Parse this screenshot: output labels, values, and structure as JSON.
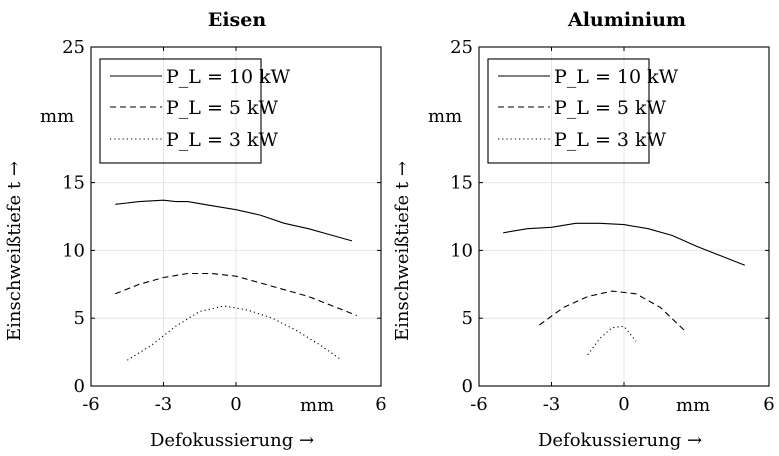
{
  "chart_data": [
    {
      "type": "line",
      "title": "Eisen",
      "xlabel": "Defokussierung →",
      "ylabel": "Einschweißtiefe t →",
      "x_unit": "mm",
      "y_unit": "mm",
      "xlim": [
        -6,
        6
      ],
      "ylim": [
        0,
        25
      ],
      "xticks": [
        "-6",
        "-3",
        "0",
        "6"
      ],
      "yticks": [
        "0",
        "5",
        "10",
        "15",
        "25"
      ],
      "grid": false,
      "legend_position": "top-left",
      "series": [
        {
          "name": "P_L = 10 kW",
          "style": "solid",
          "x": [
            -5.0,
            -4.0,
            -3.0,
            -2.5,
            -2.0,
            -1.0,
            0.0,
            1.0,
            2.0,
            3.0,
            4.0,
            4.8
          ],
          "y": [
            13.4,
            13.6,
            13.7,
            13.6,
            13.6,
            13.3,
            13.0,
            12.6,
            12.0,
            11.6,
            11.1,
            10.7
          ]
        },
        {
          "name": "P_L = 5 kW",
          "style": "dashed",
          "x": [
            -5.0,
            -4.0,
            -3.0,
            -2.0,
            -1.0,
            0.0,
            1.0,
            2.0,
            3.0,
            4.0,
            5.0
          ],
          "y": [
            6.8,
            7.5,
            8.0,
            8.3,
            8.3,
            8.1,
            7.6,
            7.1,
            6.6,
            5.9,
            5.2
          ]
        },
        {
          "name": "P_L = 3 kW",
          "style": "dotted",
          "x": [
            -4.5,
            -3.5,
            -2.5,
            -1.5,
            -0.5,
            0.5,
            1.5,
            2.5,
            3.5,
            4.3
          ],
          "y": [
            1.9,
            3.0,
            4.4,
            5.5,
            5.9,
            5.6,
            5.0,
            4.1,
            3.0,
            2.0
          ]
        }
      ]
    },
    {
      "type": "line",
      "title": "Aluminium",
      "xlabel": "Defokussierung →",
      "ylabel": "Einschweißtiefe t →",
      "x_unit": "mm",
      "y_unit": "mm",
      "xlim": [
        -6,
        6
      ],
      "ylim": [
        0,
        25
      ],
      "xticks": [
        "-6",
        "-3",
        "0",
        "6"
      ],
      "yticks": [
        "0",
        "5",
        "10",
        "15",
        "25"
      ],
      "grid": false,
      "legend_position": "top-left",
      "series": [
        {
          "name": "P_L = 10 kW",
          "style": "solid",
          "x": [
            -5.0,
            -4.0,
            -3.0,
            -2.0,
            -1.0,
            0.0,
            1.0,
            2.0,
            3.0,
            4.0,
            5.0
          ],
          "y": [
            11.3,
            11.6,
            11.7,
            12.0,
            12.0,
            11.9,
            11.6,
            11.1,
            10.3,
            9.6,
            8.9
          ]
        },
        {
          "name": "P_L = 5 kW",
          "style": "dashed",
          "x": [
            -3.5,
            -2.5,
            -1.5,
            -0.5,
            0.5,
            1.5,
            2.5
          ],
          "y": [
            4.5,
            5.8,
            6.6,
            7.0,
            6.8,
            5.8,
            4.1
          ]
        },
        {
          "name": "P_L = 3 kW",
          "style": "dotted",
          "x": [
            -1.5,
            -1.0,
            -0.5,
            0.0,
            0.5
          ],
          "y": [
            2.3,
            3.5,
            4.3,
            4.4,
            3.3
          ]
        }
      ]
    }
  ]
}
